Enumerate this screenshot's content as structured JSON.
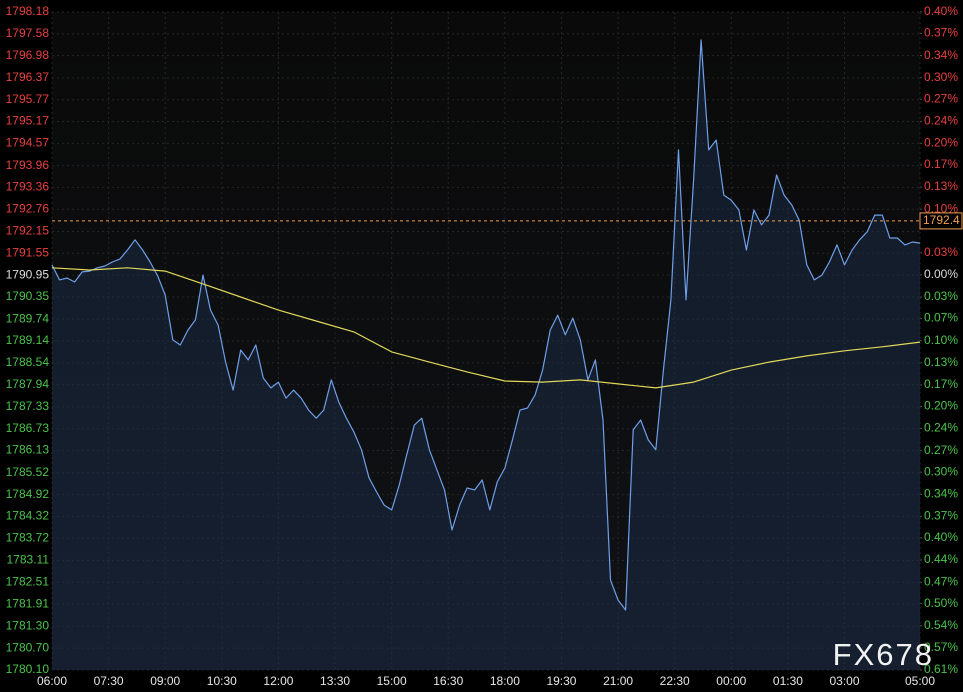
{
  "chart_data": {
    "type": "line",
    "watermark": "FX678",
    "grid": true,
    "background": "#000000",
    "grid_color": "#262626",
    "up_color": "#e8413f",
    "down_color": "#4cc44c",
    "flat_color": "#dddddd",
    "xlim": [
      0,
      23
    ],
    "xticks": [
      {
        "value": 0,
        "label": "06:00"
      },
      {
        "value": 1.5,
        "label": "07:30"
      },
      {
        "value": 3,
        "label": "09:00"
      },
      {
        "value": 4.5,
        "label": "10:30"
      },
      {
        "value": 6,
        "label": "12:00"
      },
      {
        "value": 7.5,
        "label": "13:30"
      },
      {
        "value": 9,
        "label": "15:00"
      },
      {
        "value": 10.5,
        "label": "16:30"
      },
      {
        "value": 12,
        "label": "18:00"
      },
      {
        "value": 13.5,
        "label": "19:30"
      },
      {
        "value": 15,
        "label": "21:00"
      },
      {
        "value": 16.5,
        "label": "22:30"
      },
      {
        "value": 18,
        "label": "00:00"
      },
      {
        "value": 19.5,
        "label": "01:30"
      },
      {
        "value": 21,
        "label": "03:00"
      },
      {
        "value": 23,
        "label": "05:00"
      }
    ],
    "ylim": [
      1780.1,
      1798.18
    ],
    "yticks": [
      1798.18,
      1797.58,
      1796.98,
      1796.37,
      1795.77,
      1795.17,
      1794.57,
      1793.96,
      1793.36,
      1792.76,
      1792.15,
      1791.55,
      1790.95,
      1790.35,
      1789.74,
      1789.14,
      1788.54,
      1787.94,
      1787.33,
      1786.73,
      1786.13,
      1785.52,
      1784.92,
      1784.32,
      1783.72,
      1783.11,
      1782.51,
      1781.91,
      {
        "value": 1781.3,
        "label": "1781.30"
      },
      {
        "value": 1780.7,
        "label": "1780.70"
      },
      {
        "value": 1780.1,
        "label": "1780.10"
      }
    ],
    "y2lim": [
      -0.607,
      0.404
    ],
    "y2ticks": [
      {
        "value": 0.404,
        "label": "0.40%"
      },
      {
        "value": 0.371,
        "label": "0.37%"
      },
      {
        "value": 0.337,
        "label": "0.34%"
      },
      {
        "value": 0.303,
        "label": "0.30%"
      },
      {
        "value": 0.27,
        "label": "0.27%"
      },
      {
        "value": 0.236,
        "label": "0.24%"
      },
      {
        "value": 0.202,
        "label": "0.20%"
      },
      {
        "value": 0.169,
        "label": "0.17%"
      },
      {
        "value": 0.135,
        "label": "0.13%"
      },
      {
        "value": 0.101,
        "label": "0.10%"
      },
      {
        "value": 0.034,
        "label": "0.03%"
      },
      {
        "value": 0,
        "label": "0.00%"
      },
      {
        "value": -0.034,
        "label": "0.03%"
      },
      {
        "value": -0.067,
        "label": "0.07%"
      },
      {
        "value": -0.101,
        "label": "0.10%"
      },
      {
        "value": -0.135,
        "label": "0.13%"
      },
      {
        "value": -0.169,
        "label": "0.17%"
      },
      {
        "value": -0.202,
        "label": "0.20%"
      },
      {
        "value": -0.236,
        "label": "0.24%"
      },
      {
        "value": -0.27,
        "label": "0.27%"
      },
      {
        "value": -0.303,
        "label": "0.30%"
      },
      {
        "value": -0.337,
        "label": "0.34%"
      },
      {
        "value": -0.371,
        "label": "0.37%"
      },
      {
        "value": -0.404,
        "label": "0.40%"
      },
      {
        "value": -0.438,
        "label": "0.44%"
      },
      {
        "value": -0.472,
        "label": "0.47%"
      },
      {
        "value": -0.505,
        "label": "0.50%"
      },
      {
        "value": -0.539,
        "label": "0.54%"
      },
      {
        "value": -0.573,
        "label": "0.57%"
      },
      {
        "value": -0.607,
        "label": "0.61%"
      }
    ],
    "last_price": {
      "value": 1792.44,
      "label": "1792.4",
      "color": "#f0a050"
    },
    "series": [
      {
        "color": "#6f9fe8",
        "area": true,
        "area_color": "#1c3050",
        "x": [
          0,
          0.2,
          0.4,
          0.6,
          0.8,
          1,
          1.2,
          1.4,
          1.6,
          1.8,
          2,
          2.2,
          2.4,
          2.6,
          2.8,
          3,
          3.2,
          3.4,
          3.6,
          3.8,
          4,
          4.2,
          4.4,
          4.6,
          4.8,
          5,
          5.2,
          5.4,
          5.6,
          5.8,
          6,
          6.2,
          6.4,
          6.6,
          6.8,
          7,
          7.2,
          7.4,
          7.6,
          7.8,
          8,
          8.2,
          8.4,
          8.6,
          8.8,
          9,
          9.2,
          9.4,
          9.6,
          9.8,
          10,
          10.2,
          10.4,
          10.6,
          10.8,
          11,
          11.2,
          11.4,
          11.6,
          11.8,
          12,
          12.2,
          12.4,
          12.6,
          12.8,
          13,
          13.2,
          13.4,
          13.6,
          13.8,
          14,
          14.2,
          14.4,
          14.6,
          14.8,
          15,
          15.2,
          15.4,
          15.6,
          15.8,
          16,
          16.2,
          16.4,
          16.6,
          16.8,
          17,
          17.2,
          17.4,
          17.6,
          17.8,
          18,
          18.2,
          18.4,
          18.6,
          18.8,
          19,
          19.2,
          19.4,
          19.6,
          19.8,
          20,
          20.2,
          20.4,
          20.6,
          20.8,
          21,
          21.2,
          21.4,
          21.6,
          21.8,
          22,
          22.2,
          22.4,
          22.6,
          22.8,
          23
        ],
        "values": [
          1791.23,
          1790.82,
          1790.87,
          1790.76,
          1791.04,
          1791.06,
          1791.15,
          1791.2,
          1791.31,
          1791.39,
          1791.64,
          1791.92,
          1791.64,
          1791.31,
          1790.93,
          1790.4,
          1789.17,
          1789.03,
          1789.44,
          1789.72,
          1790.95,
          1789.99,
          1789.58,
          1788.56,
          1787.79,
          1788.89,
          1788.62,
          1789.03,
          1788.12,
          1787.85,
          1788.01,
          1787.57,
          1787.79,
          1787.57,
          1787.24,
          1787.02,
          1787.24,
          1788.07,
          1787.46,
          1787.02,
          1786.64,
          1786.15,
          1785.38,
          1784.99,
          1784.63,
          1784.5,
          1785.18,
          1786.01,
          1786.83,
          1787.02,
          1786.15,
          1785.6,
          1785.05,
          1783.95,
          1784.63,
          1785.1,
          1785.05,
          1785.32,
          1784.5,
          1785.27,
          1785.65,
          1786.42,
          1787.24,
          1787.3,
          1787.66,
          1788.34,
          1789.44,
          1789.85,
          1789.31,
          1789.77,
          1789.17,
          1788.07,
          1788.62,
          1786.97,
          1782.57,
          1782.02,
          1781.75,
          1786.7,
          1786.97,
          1786.42,
          1786.15,
          1788.34,
          1790.27,
          1794.39,
          1790.27,
          1793.56,
          1797.41,
          1794.39,
          1794.66,
          1793.15,
          1793.01,
          1792.74,
          1791.64,
          1792.74,
          1792.33,
          1792.6,
          1793.7,
          1793.15,
          1792.88,
          1792.46,
          1791.23,
          1790.82,
          1790.95,
          1791.31,
          1791.78,
          1791.23,
          1791.64,
          1791.92,
          1792.14,
          1792.6,
          1792.6,
          1791.97,
          1791.97,
          1791.78,
          1791.86,
          1791.83
        ]
      },
      {
        "color": "#e0d85a",
        "x": [
          0,
          1,
          2,
          3,
          4,
          5,
          6,
          7,
          8,
          9,
          10,
          11,
          12,
          13,
          14,
          15,
          16,
          17,
          18,
          19,
          20,
          21,
          22,
          23
        ],
        "values": [
          1791.15,
          1791.09,
          1791.15,
          1791.06,
          1790.71,
          1790.35,
          1789.99,
          1789.69,
          1789.39,
          1788.84,
          1788.56,
          1788.29,
          1788.04,
          1788.01,
          1788.07,
          1787.96,
          1787.85,
          1788.01,
          1788.34,
          1788.56,
          1788.73,
          1788.87,
          1788.98,
          1789.11
        ]
      }
    ]
  }
}
